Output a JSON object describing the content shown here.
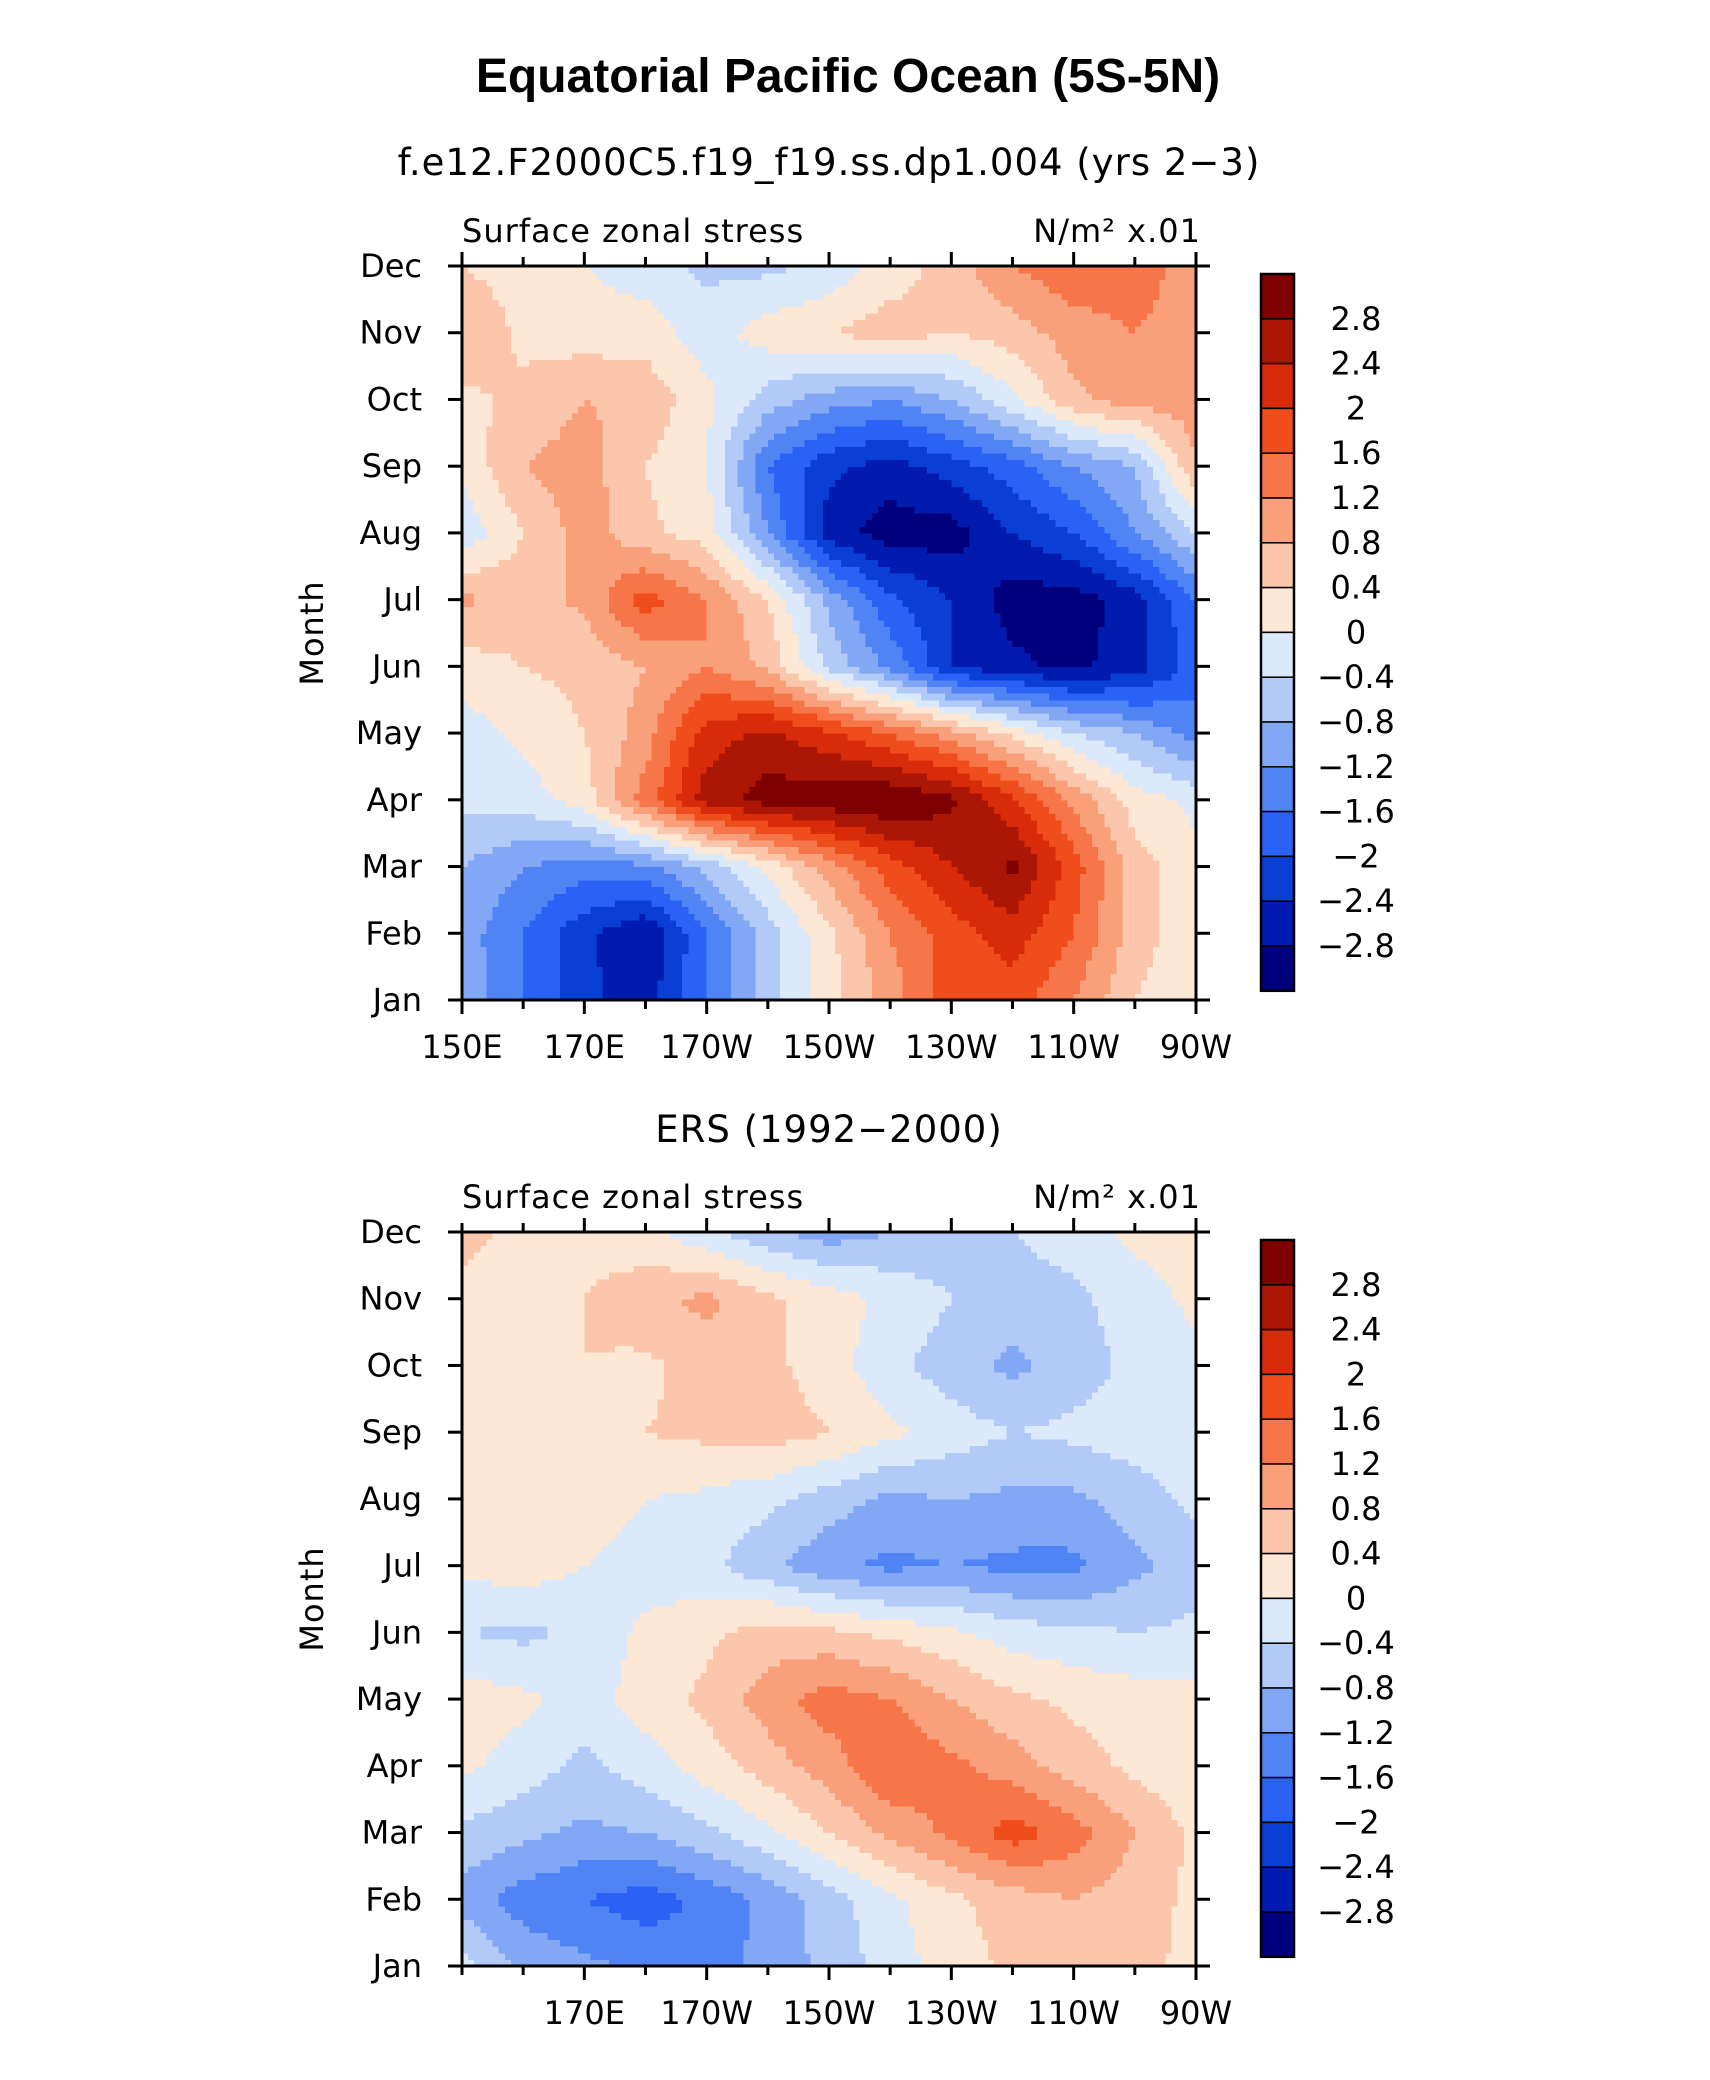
{
  "chart_data": {
    "title": "Equatorial Pacific Ocean (5S-5N)",
    "levels": [
      -2.8,
      -2.4,
      -2,
      -1.6,
      -1.2,
      -0.8,
      -0.4,
      0,
      0.4,
      0.8,
      1.2,
      1.6,
      2,
      2.4,
      2.8
    ],
    "colorbar_labels": [
      "2.8",
      "2.4",
      "2",
      "1.6",
      "1.2",
      "0.8",
      "0.4",
      "0",
      "−0.4",
      "−0.8",
      "−1.2",
      "−1.6",
      "−2",
      "−2.4",
      "−2.8"
    ],
    "colors": [
      "#00007f",
      "#001bad",
      "#0a3fd6",
      "#2a62f5",
      "#5084f5",
      "#82a7f5",
      "#b2caf7",
      "#dbe9fb",
      "#fde8d6",
      "#fbc6ab",
      "#f9a07a",
      "#f6764a",
      "#ef4e1c",
      "#d82b0a",
      "#ab1704",
      "#7f0000"
    ],
    "months": [
      "Jan",
      "Feb",
      "Mar",
      "Apr",
      "May",
      "Jun",
      "Jul",
      "Aug",
      "Sep",
      "Oct",
      "Nov",
      "Dec"
    ],
    "panels": [
      {
        "type": "heatmap",
        "subtitle": "f.e12.F2000C5.f19_f19.ss.dp1.004 (yrs 2−3)",
        "left_label": "Surface zonal stress",
        "right_label": "N/m² x.01",
        "ylabel": "Month",
        "xlim": [
          150,
          270
        ],
        "x": [
          150,
          160,
          170,
          180,
          190,
          200,
          210,
          220,
          230,
          240,
          250,
          260,
          270
        ],
        "xtick_positions": [
          150,
          170,
          190,
          210,
          230,
          250,
          270
        ],
        "xtick_labels": [
          "150E",
          "170E",
          "170W",
          "150W",
          "130W",
          "110W",
          "90W"
        ],
        "values": [
          [
            -0.9,
            -1.6,
            -2.3,
            -2.6,
            -1.6,
            -0.6,
            0.2,
            1.0,
            1.8,
            1.8,
            1.2,
            0.4,
            0.1
          ],
          [
            -1.0,
            -1.6,
            -2.3,
            -2.8,
            -1.6,
            -0.6,
            0.3,
            1.2,
            1.8,
            2.2,
            1.6,
            0.6,
            0.1
          ],
          [
            -0.8,
            -1.2,
            -1.4,
            -1.3,
            -0.7,
            0.1,
            1.0,
            1.8,
            2.4,
            2.9,
            1.8,
            0.6,
            0.1
          ],
          [
            -0.3,
            -0.2,
            0.2,
            1.4,
            2.6,
            3.0,
            3.1,
            3.2,
            2.9,
            2.1,
            1.1,
            0.2,
            -0.1
          ],
          [
            -0.2,
            0.1,
            0.4,
            1.0,
            2.2,
            2.5,
            2.1,
            1.6,
            1.0,
            0.3,
            -0.4,
            -0.8,
            -1.4
          ],
          [
            0.2,
            0.4,
            0.5,
            0.8,
            1.2,
            0.7,
            -0.5,
            -1.3,
            -2.4,
            -2.7,
            -2.9,
            -2.6,
            -1.8
          ],
          [
            0.9,
            0.6,
            0.9,
            1.8,
            1.2,
            0.4,
            -0.9,
            -1.9,
            -2.4,
            -3.0,
            -3.0,
            -2.6,
            -1.6
          ],
          [
            -0.3,
            0.4,
            1.0,
            0.5,
            0.2,
            -1.2,
            -2.6,
            -3.0,
            -3.0,
            -2.4,
            -2.0,
            -1.2,
            -0.4
          ],
          [
            0.1,
            0.8,
            1.0,
            0.4,
            0.0,
            -1.6,
            -2.3,
            -2.6,
            -2.2,
            -1.8,
            -1.2,
            -0.8,
            0.8
          ],
          [
            0.3,
            0.5,
            0.8,
            0.7,
            0.1,
            -0.6,
            -1.0,
            -1.2,
            -0.8,
            -0.1,
            0.7,
            1.0,
            1.0
          ],
          [
            0.8,
            0.3,
            0.2,
            0.2,
            -0.2,
            0.2,
            0.4,
            0.6,
            0.4,
            0.6,
            1.0,
            1.2,
            1.0
          ],
          [
            0.4,
            0.2,
            0.0,
            -0.2,
            -0.5,
            -0.5,
            -0.3,
            0.2,
            0.6,
            1.2,
            1.5,
            1.4,
            1.0
          ]
        ]
      },
      {
        "type": "heatmap",
        "subtitle": "ERS (1992−2000)",
        "left_label": "Surface zonal stress",
        "right_label": "N/m² x.01",
        "ylabel": "Month",
        "xlim": [
          150,
          270
        ],
        "x": [
          150,
          160,
          170,
          180,
          190,
          200,
          210,
          220,
          230,
          240,
          250,
          260,
          270
        ],
        "xtick_positions": [
          170,
          190,
          210,
          230,
          250,
          270
        ],
        "xtick_labels": [
          "170E",
          "170W",
          "150W",
          "130W",
          "110W",
          "90W"
        ],
        "values": [
          [
            -0.2,
            -0.9,
            -1.1,
            -1.3,
            -1.5,
            -1.0,
            -0.7,
            -0.2,
            0.2,
            0.5,
            0.7,
            0.5,
            0.3
          ],
          [
            -1.0,
            -1.4,
            -1.6,
            -1.8,
            -1.5,
            -1.1,
            -0.6,
            -0.1,
            0.3,
            0.6,
            0.8,
            0.6,
            0.3
          ],
          [
            -0.5,
            -0.7,
            -0.9,
            -0.8,
            -0.5,
            -0.1,
            0.4,
            0.9,
            1.3,
            1.8,
            1.4,
            0.8,
            0.3
          ],
          [
            0.1,
            -0.2,
            -0.5,
            -0.2,
            0.2,
            0.6,
            1.0,
            1.6,
            1.3,
            1.0,
            0.6,
            0.3,
            0.1
          ],
          [
            0.2,
            0.1,
            -0.2,
            0.2,
            0.5,
            1.0,
            1.4,
            1.2,
            0.8,
            0.5,
            0.3,
            0.2,
            0.1
          ],
          [
            -0.4,
            -0.5,
            -0.3,
            0.1,
            0.3,
            0.6,
            0.5,
            0.3,
            0.1,
            -0.2,
            -0.3,
            -0.4,
            -0.3
          ],
          [
            0.1,
            0.2,
            0.0,
            -0.2,
            -0.3,
            -0.7,
            -1.1,
            -1.3,
            -1.2,
            -1.3,
            -1.3,
            -0.9,
            -0.6
          ],
          [
            0.1,
            0.3,
            0.2,
            0.0,
            -0.1,
            -0.3,
            -0.6,
            -0.9,
            -0.8,
            -0.9,
            -0.9,
            -0.6,
            -0.3
          ],
          [
            0.2,
            0.3,
            0.4,
            0.4,
            0.5,
            0.6,
            0.4,
            0.1,
            -0.2,
            -0.4,
            -0.3,
            -0.2,
            -0.2
          ],
          [
            0.2,
            0.3,
            0.4,
            0.3,
            0.6,
            0.5,
            0.2,
            -0.3,
            -0.6,
            -0.9,
            -0.6,
            -0.3,
            -0.1
          ],
          [
            0.3,
            0.3,
            0.4,
            0.7,
            0.9,
            0.5,
            0.2,
            -0.1,
            -0.4,
            -0.6,
            -0.5,
            -0.2,
            0.1
          ],
          [
            0.5,
            0.3,
            0.2,
            0.1,
            -0.3,
            -0.7,
            -1.0,
            -0.8,
            -0.6,
            -0.4,
            -0.2,
            0.1,
            0.2
          ]
        ]
      }
    ]
  }
}
